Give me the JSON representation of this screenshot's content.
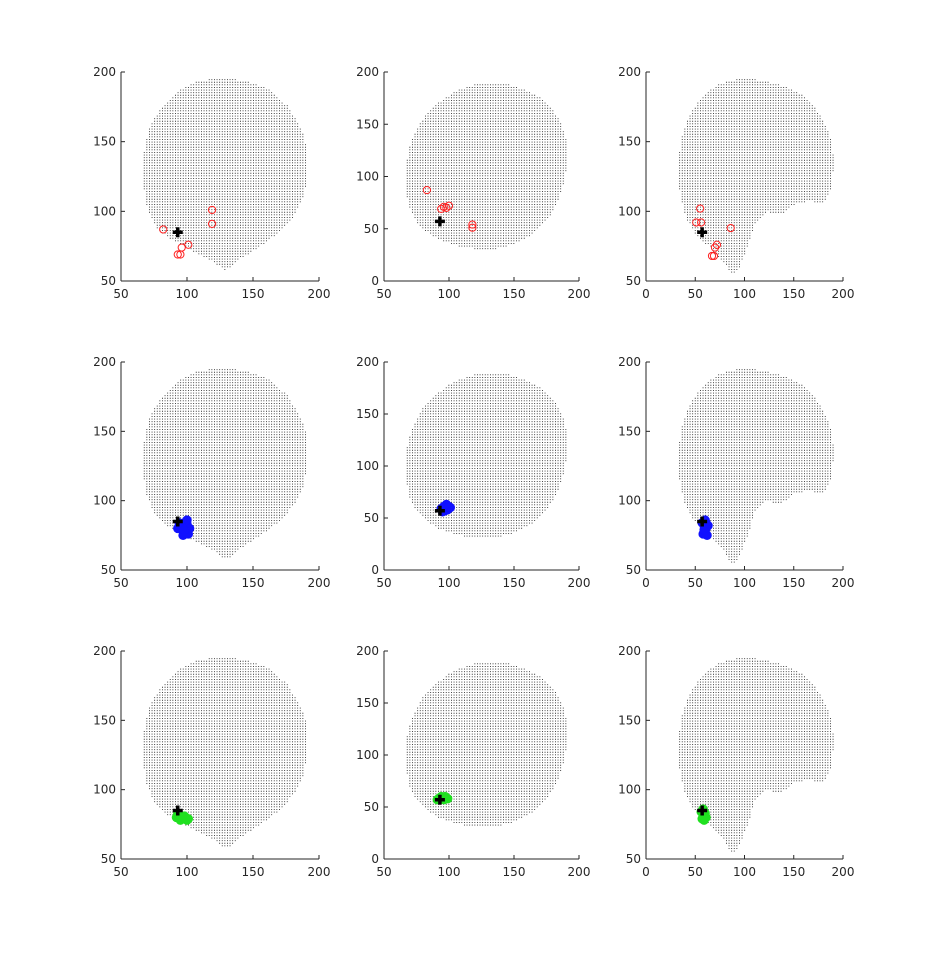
{
  "colors": {
    "background": "#ffffff",
    "axis": "#262626",
    "brain_dots": "#1a1a1a",
    "marker": "#000000",
    "row1_markers": "#ff2020",
    "row2_markers": "#1010ff",
    "row3_markers": "#20e020"
  },
  "chart_data": [
    {
      "type": "scatter",
      "view": "coronal",
      "xlim": [
        50,
        200
      ],
      "ylim": [
        50,
        200
      ],
      "xticks": [
        50,
        100,
        150,
        200
      ],
      "yticks": [
        50,
        100,
        150,
        200
      ],
      "xticklabels": [
        "50",
        "100",
        "150",
        "200"
      ],
      "yticklabels": [
        "50",
        "100",
        "150",
        "200"
      ],
      "series": [
        {
          "role": "points",
          "marker": "open-circle",
          "color": "#ff2020",
          "x": [
            82,
            96,
            101,
            119,
            119,
            93,
            95
          ],
          "y": [
            87,
            74,
            76,
            101,
            91,
            69,
            69
          ]
        },
        {
          "role": "marker",
          "marker": "plus",
          "color": "#000000",
          "x": [
            93
          ],
          "y": [
            85
          ]
        }
      ]
    },
    {
      "type": "scatter",
      "view": "axial",
      "xlim": [
        50,
        200
      ],
      "ylim": [
        0,
        200
      ],
      "xticks": [
        50,
        100,
        150,
        200
      ],
      "yticks": [
        0,
        50,
        100,
        150,
        200
      ],
      "xticklabels": [
        "50",
        "100",
        "150",
        "200"
      ],
      "yticklabels": [
        "0",
        "50",
        "100",
        "150",
        "200"
      ],
      "series": [
        {
          "role": "points",
          "marker": "open-circle",
          "color": "#ff2020",
          "x": [
            83,
            94,
            96,
            98,
            100,
            118,
            118
          ],
          "y": [
            87,
            69,
            71,
            70,
            72,
            54,
            51
          ]
        },
        {
          "role": "marker",
          "marker": "plus",
          "color": "#000000",
          "x": [
            93
          ],
          "y": [
            57
          ]
        }
      ]
    },
    {
      "type": "scatter",
      "view": "sagittal",
      "xlim": [
        0,
        200
      ],
      "ylim": [
        50,
        200
      ],
      "xticks": [
        0,
        50,
        100,
        150,
        200
      ],
      "yticks": [
        50,
        100,
        150,
        200
      ],
      "xticklabels": [
        "0",
        "50",
        "100",
        "150",
        "200"
      ],
      "yticklabels": [
        "50",
        "100",
        "150",
        "200"
      ],
      "series": [
        {
          "role": "points",
          "marker": "open-circle",
          "color": "#ff2020",
          "x": [
            51,
            56,
            55,
            70,
            72,
            67,
            69,
            86
          ],
          "y": [
            92,
            92,
            102,
            74,
            76,
            68,
            68,
            88
          ]
        },
        {
          "role": "marker",
          "marker": "plus",
          "color": "#000000",
          "x": [
            57
          ],
          "y": [
            85
          ]
        }
      ]
    },
    {
      "type": "scatter",
      "view": "coronal",
      "xlim": [
        50,
        200
      ],
      "ylim": [
        50,
        200
      ],
      "xticks": [
        50,
        100,
        150,
        200
      ],
      "yticks": [
        50,
        100,
        150,
        200
      ],
      "xticklabels": [
        "50",
        "100",
        "150",
        "200"
      ],
      "yticklabels": [
        "50",
        "100",
        "150",
        "200"
      ],
      "series": [
        {
          "role": "points",
          "marker": "filled-cluster",
          "color": "#1010ff",
          "x": [
            93,
            96,
            98,
            100,
            99,
            101,
            97,
            95,
            102,
            100,
            98,
            94
          ],
          "y": [
            80,
            82,
            84,
            83,
            78,
            76,
            75,
            80,
            80,
            86,
            79,
            84
          ]
        },
        {
          "role": "marker",
          "marker": "plus",
          "color": "#000000",
          "x": [
            93
          ],
          "y": [
            85
          ]
        }
      ]
    },
    {
      "type": "scatter",
      "view": "axial",
      "xlim": [
        50,
        200
      ],
      "ylim": [
        0,
        200
      ],
      "xticks": [
        50,
        100,
        150,
        200
      ],
      "yticks": [
        0,
        50,
        100,
        150,
        200
      ],
      "xticklabels": [
        "50",
        "100",
        "150",
        "200"
      ],
      "yticklabels": [
        "0",
        "50",
        "100",
        "150",
        "200"
      ],
      "series": [
        {
          "role": "points",
          "marker": "filled-cluster",
          "color": "#1010ff",
          "x": [
            94,
            96,
            98,
            100,
            99,
            97,
            95,
            101,
            98,
            96
          ],
          "y": [
            59,
            60,
            62,
            61,
            58,
            57,
            56,
            60,
            63,
            61
          ]
        },
        {
          "role": "marker",
          "marker": "plus",
          "color": "#000000",
          "x": [
            93
          ],
          "y": [
            57
          ]
        }
      ]
    },
    {
      "type": "scatter",
      "view": "sagittal",
      "xlim": [
        0,
        200
      ],
      "ylim": [
        50,
        200
      ],
      "xticks": [
        0,
        50,
        100,
        150,
        200
      ],
      "yticks": [
        50,
        100,
        150,
        200
      ],
      "xticklabels": [
        "0",
        "50",
        "100",
        "150",
        "200"
      ],
      "yticklabels": [
        "50",
        "100",
        "150",
        "200"
      ],
      "series": [
        {
          "role": "points",
          "marker": "filled-cluster",
          "color": "#1010ff",
          "x": [
            57,
            59,
            61,
            63,
            60,
            58,
            62,
            60,
            59,
            61
          ],
          "y": [
            84,
            82,
            80,
            82,
            78,
            76,
            75,
            86,
            79,
            84
          ]
        },
        {
          "role": "marker",
          "marker": "plus",
          "color": "#000000",
          "x": [
            57
          ],
          "y": [
            85
          ]
        }
      ]
    },
    {
      "type": "scatter",
      "view": "coronal",
      "xlim": [
        50,
        200
      ],
      "ylim": [
        50,
        200
      ],
      "xticks": [
        50,
        100,
        150,
        200
      ],
      "yticks": [
        50,
        100,
        150,
        200
      ],
      "xticklabels": [
        "50",
        "100",
        "150",
        "200"
      ],
      "yticklabels": [
        "50",
        "100",
        "150",
        "200"
      ],
      "series": [
        {
          "role": "points",
          "marker": "filled-cluster",
          "color": "#20e020",
          "x": [
            92,
            94,
            96,
            99,
            100,
            98,
            95,
            93,
            97,
            101
          ],
          "y": [
            80,
            82,
            79,
            80,
            78,
            81,
            78,
            83,
            80,
            79
          ]
        },
        {
          "role": "marker",
          "marker": "plus",
          "color": "#000000",
          "x": [
            93
          ],
          "y": [
            85
          ]
        }
      ]
    },
    {
      "type": "scatter",
      "view": "axial",
      "xlim": [
        50,
        200
      ],
      "ylim": [
        0,
        200
      ],
      "xticks": [
        50,
        100,
        150,
        200
      ],
      "yticks": [
        0,
        50,
        100,
        150,
        200
      ],
      "xticklabels": [
        "50",
        "100",
        "150",
        "200"
      ],
      "yticklabels": [
        "0",
        "50",
        "100",
        "150",
        "200"
      ],
      "series": [
        {
          "role": "points",
          "marker": "filled-cluster",
          "color": "#20e020",
          "x": [
            91,
            93,
            95,
            97,
            99,
            96,
            94,
            92,
            98
          ],
          "y": [
            57,
            59,
            58,
            60,
            58,
            57,
            60,
            58,
            59
          ]
        },
        {
          "role": "marker",
          "marker": "plus",
          "color": "#000000",
          "x": [
            93
          ],
          "y": [
            57
          ]
        }
      ]
    },
    {
      "type": "scatter",
      "view": "sagittal",
      "xlim": [
        0,
        200
      ],
      "ylim": [
        50,
        200
      ],
      "xticks": [
        0,
        50,
        100,
        150,
        200
      ],
      "yticks": [
        50,
        100,
        150,
        200
      ],
      "xticklabels": [
        "0",
        "50",
        "100",
        "150",
        "200"
      ],
      "yticklabels": [
        "50",
        "100",
        "150",
        "200"
      ],
      "series": [
        {
          "role": "points",
          "marker": "filled-cluster",
          "color": "#20e020",
          "x": [
            56,
            58,
            60,
            59,
            61,
            57,
            60,
            58
          ],
          "y": [
            84,
            82,
            80,
            78,
            80,
            79,
            83,
            86
          ]
        },
        {
          "role": "marker",
          "marker": "plus",
          "color": "#000000",
          "x": [
            57
          ],
          "y": [
            85
          ]
        }
      ]
    }
  ]
}
